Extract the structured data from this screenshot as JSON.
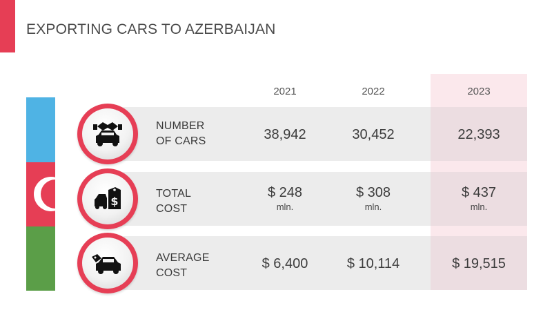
{
  "title": "EXPORTING CARS TO AZERBAIJAN",
  "colors": {
    "accent": "#e63e55",
    "flag_blue": "#4fb3e4",
    "flag_red": "#e63e55",
    "flag_green": "#5b9e48",
    "highlight": "#fbe8ec"
  },
  "years": [
    "2021",
    "2022",
    "2023"
  ],
  "rows": [
    {
      "icon": "handshake-car-icon",
      "label_line1": "NUMBER",
      "label_line2": "OF CARS",
      "values": [
        "38,942",
        "30,452",
        "22,393"
      ],
      "unit": ""
    },
    {
      "icon": "cars-price-tag-icon",
      "label_line1": "TOTAL",
      "label_line2": "COST",
      "values": [
        "$ 248",
        "$ 308",
        "$ 437"
      ],
      "unit": "mln."
    },
    {
      "icon": "car-price-tag-icon",
      "label_line1": "AVERAGE",
      "label_line2": "COST",
      "values": [
        "$ 6,400",
        "$ 10,114",
        "$ 19,515"
      ],
      "unit": ""
    }
  ]
}
